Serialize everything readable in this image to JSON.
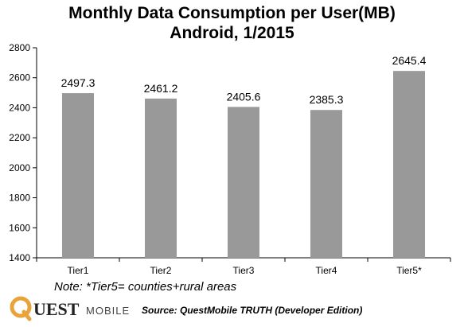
{
  "chart_data": {
    "type": "bar",
    "title": "Monthly Data Consumption per User(MB)",
    "subtitle": "Android, 1/2015",
    "categories": [
      "Tier1",
      "Tier2",
      "Tier3",
      "Tier4",
      "Tier5*"
    ],
    "values": [
      2497.3,
      2461.2,
      2405.6,
      2385.3,
      2645.4
    ],
    "data_labels": [
      "2497.3",
      "2461.2",
      "2405.6",
      "2385.3",
      "2645.4"
    ],
    "ylim": [
      1400,
      2800
    ],
    "yticks": [
      1400,
      1600,
      1800,
      2000,
      2200,
      2400,
      2600,
      2800
    ],
    "xlabel": "",
    "ylabel": "",
    "grid": false,
    "legend": "none",
    "bar_color": "#999999"
  },
  "footnote": "Note: *Tier5= counties+rural areas",
  "logo": {
    "brand_q": "Q",
    "brand_uest": "UEST",
    "brand_mobile": "MOBILE",
    "accent": "#e8a33a"
  },
  "source": "Source: QuestMobile TRUTH (Developer Edition)"
}
